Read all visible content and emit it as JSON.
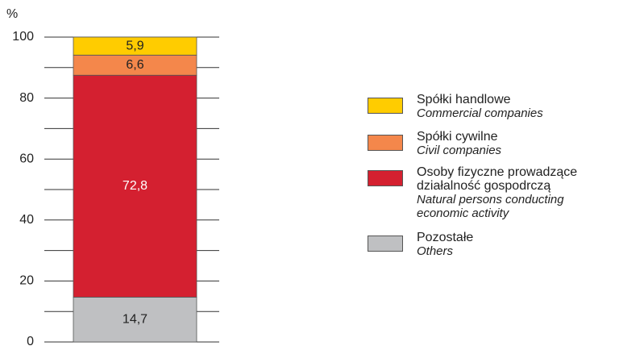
{
  "chart_data": {
    "type": "stacked_bar",
    "y_label": "%",
    "categories": [
      null
    ],
    "series": [
      {
        "name": "Pozostałe",
        "name_en": "Others",
        "color": "#bfc0c2",
        "values": [
          14.7
        ],
        "value_labels": [
          "14,7"
        ]
      },
      {
        "name": "Osoby fizyczne prowadzące działalność gospodrczą",
        "name_en": "Natural persons conducting economic activity",
        "color": "#d42030",
        "values": [
          72.8
        ],
        "value_labels": [
          "72,8"
        ]
      },
      {
        "name": "Spółki cywilne",
        "name_en": "Civil companies",
        "color": "#f4874b",
        "values": [
          6.6
        ],
        "value_labels": [
          "6,6"
        ]
      },
      {
        "name": "Spółki handlowe",
        "name_en": "Commercial companies",
        "color": "#ffcc00",
        "values": [
          5.9
        ],
        "value_labels": [
          "5,9"
        ]
      }
    ],
    "ylim": [
      0,
      100
    ],
    "yticks": [
      0,
      20,
      40,
      60,
      80,
      100
    ],
    "minor_yticks": [
      10,
      30,
      50,
      70,
      90
    ],
    "grid": true
  }
}
